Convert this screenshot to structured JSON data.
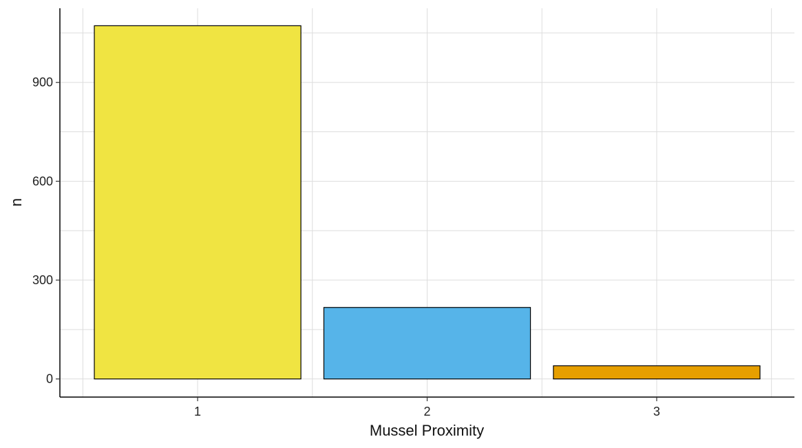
{
  "chart_data": {
    "type": "bar",
    "title": "",
    "xlabel": "Mussel Proximity",
    "ylabel": "n",
    "categories": [
      "1",
      "2",
      "3"
    ],
    "values": [
      1072,
      217,
      40
    ],
    "colors": [
      "#F0E442",
      "#56B4E9",
      "#E69F00"
    ],
    "bar_edge_color": "#000000",
    "ylim": [
      -55,
      1125
    ],
    "yticks": [
      0,
      300,
      600,
      900
    ],
    "ytick_labels": [
      "0",
      "300",
      "600",
      "900"
    ],
    "grid": true,
    "grid_color": "#dddddd",
    "legend": "none"
  }
}
